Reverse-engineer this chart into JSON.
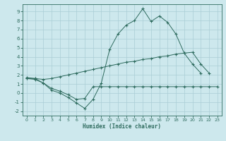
{
  "line1_x": [
    0,
    1,
    2,
    3,
    4,
    5,
    6,
    7,
    8,
    9,
    10,
    11,
    12,
    13,
    14,
    15,
    16,
    17,
    18,
    19,
    20,
    21
  ],
  "line1_y": [
    1.7,
    1.6,
    1.1,
    0.3,
    0.0,
    -0.5,
    -1.1,
    -1.7,
    -0.7,
    1.1,
    4.8,
    6.5,
    7.5,
    8.0,
    9.3,
    7.9,
    8.5,
    7.8,
    6.5,
    4.4,
    3.2,
    2.2
  ],
  "line2_x": [
    0,
    1,
    2,
    3,
    4,
    5,
    6,
    7,
    8,
    9,
    10,
    11,
    12,
    13,
    14,
    15,
    16,
    17,
    18,
    19,
    20,
    21,
    22,
    23
  ],
  "line2_y": [
    1.6,
    1.6,
    1.5,
    1.6,
    1.8,
    2.0,
    2.2,
    2.4,
    2.6,
    2.8,
    3.0,
    3.2,
    3.4,
    3.5,
    3.7,
    3.8,
    4.0,
    4.1,
    4.3,
    4.4,
    4.5,
    3.2,
    2.2,
    null
  ],
  "line3_x": [
    0,
    1,
    2,
    3,
    4,
    5,
    6,
    7,
    8,
    9,
    10,
    11,
    12,
    13,
    14,
    15,
    16,
    17,
    18,
    19,
    20,
    21,
    22,
    23
  ],
  "line3_y": [
    1.6,
    1.5,
    1.1,
    0.5,
    0.2,
    -0.2,
    -0.7,
    -0.6,
    0.7,
    0.7,
    0.7,
    0.7,
    0.7,
    0.7,
    0.7,
    0.7,
    0.7,
    0.7,
    0.7,
    0.7,
    0.7,
    0.7,
    0.7,
    0.7
  ],
  "color": "#2e6b5e",
  "bg_color": "#cde8ed",
  "grid_color": "#aacdd5",
  "xlabel": "Humidex (Indice chaleur)",
  "ylim": [
    -2.5,
    9.8
  ],
  "xlim": [
    -0.5,
    23.5
  ],
  "yticks": [
    -2,
    -1,
    0,
    1,
    2,
    3,
    4,
    5,
    6,
    7,
    8,
    9
  ],
  "xticks": [
    0,
    1,
    2,
    3,
    4,
    5,
    6,
    7,
    8,
    9,
    10,
    11,
    12,
    13,
    14,
    15,
    16,
    17,
    18,
    19,
    20,
    21,
    22,
    23
  ]
}
